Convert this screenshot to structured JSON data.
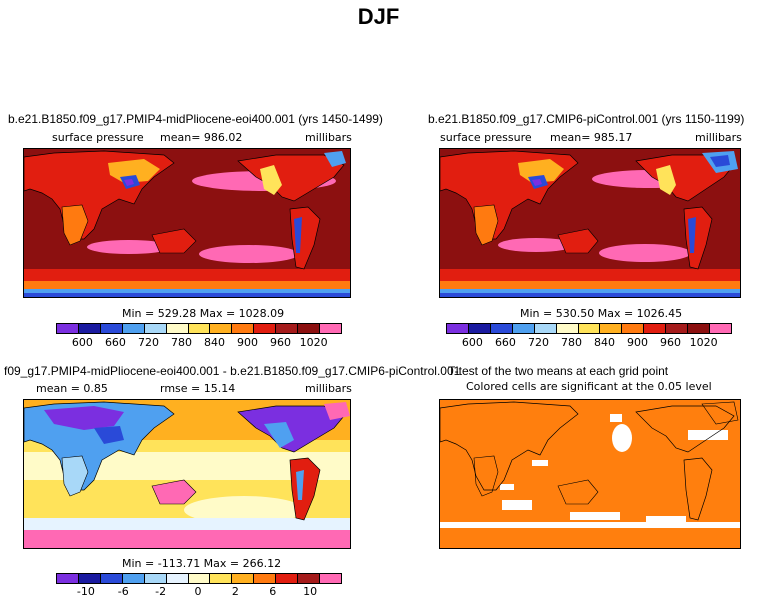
{
  "page_title": "DJF",
  "colors": {
    "abs_scale": [
      "#7b2fe0",
      "#1a1aa0",
      "#2a4ad8",
      "#4fa0f0",
      "#a8d8f8",
      "#fffbc8",
      "#ffe35a",
      "#ffb020",
      "#ff7a10",
      "#e11e10",
      "#a51b1b",
      "#8c1010",
      "#ff69b4"
    ],
    "diff_scale": [
      "#7b2fe0",
      "#1a1aa0",
      "#2a4ad8",
      "#4fa0f0",
      "#a8d8f8",
      "#e6f3ff",
      "#fffbc8",
      "#ffe35a",
      "#ffb020",
      "#ff7a10",
      "#e11e10",
      "#a51b1b",
      "#ff69b4"
    ],
    "ttest_fill": "#ff7f0e",
    "ttest_gap": "#ffffff",
    "land_outline": "#000000"
  },
  "panels": {
    "top_left": {
      "title": "b.e21.B1850.f09_g17.PMIP4-midPliocene-eoi400.001 (yrs 1450-1499)",
      "variable": "surface pressure",
      "stat": "mean= 986.02",
      "units": "millibars",
      "minmax": "Min = 529.28 Max = 1028.09"
    },
    "top_right": {
      "title": "b.e21.B1850.f09_g17.CMIP6-piControl.001 (yrs 1150-1199)",
      "variable": "surface pressure",
      "stat": "mean= 985.17",
      "units": "millibars",
      "minmax": "Min = 530.50 Max = 1026.45"
    },
    "bottom_left": {
      "title": "f09_g17.PMIP4-midPliocene-eoi400.001 - b.e21.B1850.f09_g17.CMIP6-piControl.001",
      "stat": "mean =    0.85",
      "rmse": "rmse =  15.14",
      "units": "millibars",
      "minmax": "Min = -113.71 Max = 266.12"
    },
    "bottom_right": {
      "title": "T-test of the two means at each grid point",
      "subtitle": "Colored cells are significant at the 0.05 level"
    }
  },
  "chart_data": [
    {
      "type": "heatmap",
      "title": "b.e21.B1850.f09_g17.PMIP4-midPliocene-eoi400.001 (yrs 1450-1499)",
      "field": "surface pressure",
      "units": "millibars",
      "mean": 986.02,
      "min": 529.28,
      "max": 1028.09,
      "colorbar_levels": [
        600,
        660,
        720,
        780,
        840,
        900,
        960,
        1020
      ],
      "colorbar_labels": [
        "600",
        "660",
        "720",
        "780",
        "840",
        "900",
        "960",
        "1020"
      ]
    },
    {
      "type": "heatmap",
      "title": "b.e21.B1850.f09_g17.CMIP6-piControl.001 (yrs 1150-1199)",
      "field": "surface pressure",
      "units": "millibars",
      "mean": 985.17,
      "min": 530.5,
      "max": 1026.45,
      "colorbar_levels": [
        600,
        660,
        720,
        780,
        840,
        900,
        960,
        1020
      ],
      "colorbar_labels": [
        "600",
        "660",
        "720",
        "780",
        "840",
        "900",
        "960",
        "1020"
      ]
    },
    {
      "type": "heatmap",
      "title": "f09_g17.PMIP4-midPliocene-eoi400.001 - b.e21.B1850.f09_g17.CMIP6-piControl.001",
      "units": "millibars",
      "mean": 0.85,
      "rmse": 15.14,
      "min": -113.71,
      "max": 266.12,
      "colorbar_levels": [
        -10,
        -6,
        -2,
        0,
        2,
        6,
        10
      ],
      "colorbar_labels": [
        "-10",
        "-6",
        "-2",
        "0",
        "2",
        "6",
        "10"
      ]
    },
    {
      "type": "heatmap",
      "title": "T-test of the two means at each grid point",
      "subtitle": "Colored cells are significant at the 0.05 level",
      "significance_level": 0.05
    }
  ]
}
